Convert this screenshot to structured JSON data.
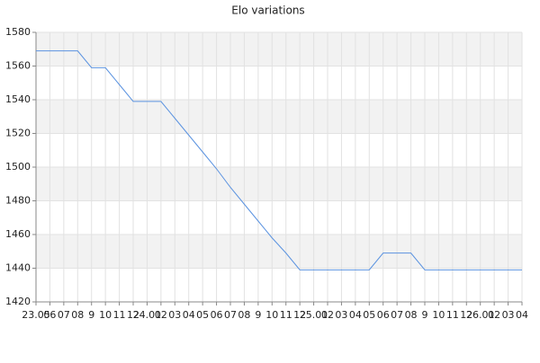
{
  "chart_data": {
    "type": "line",
    "title": "Elo variations",
    "categories": [
      "23.05",
      "06",
      "07",
      "08",
      "9",
      "10",
      "11",
      "12",
      "24.01",
      "02",
      "03",
      "04",
      "05",
      "06",
      "07",
      "08",
      "9",
      "10",
      "11",
      "12",
      "25.01",
      "02",
      "03",
      "04",
      "05",
      "06",
      "07",
      "08",
      "9",
      "10",
      "11",
      "12",
      "26.01",
      "02",
      "03",
      "04"
    ],
    "series": [
      {
        "color": "#5b93e0",
        "values": [
          1569,
          1569,
          1569,
          1569,
          1559,
          1559,
          1549,
          1539,
          1539,
          1539,
          1529,
          1519,
          1509,
          1499,
          1488,
          1478,
          1468,
          1458,
          1449,
          1439,
          1439,
          1439,
          1439,
          1439,
          1439,
          1449,
          1449,
          1449,
          1439,
          1439,
          1439,
          1439,
          1439,
          1439,
          1439,
          1439
        ]
      }
    ],
    "ylim": [
      1420,
      1580
    ],
    "yticks": [
      1420,
      1440,
      1460,
      1480,
      1500,
      1520,
      1540,
      1560,
      1580
    ],
    "grid": true,
    "bands": true
  }
}
